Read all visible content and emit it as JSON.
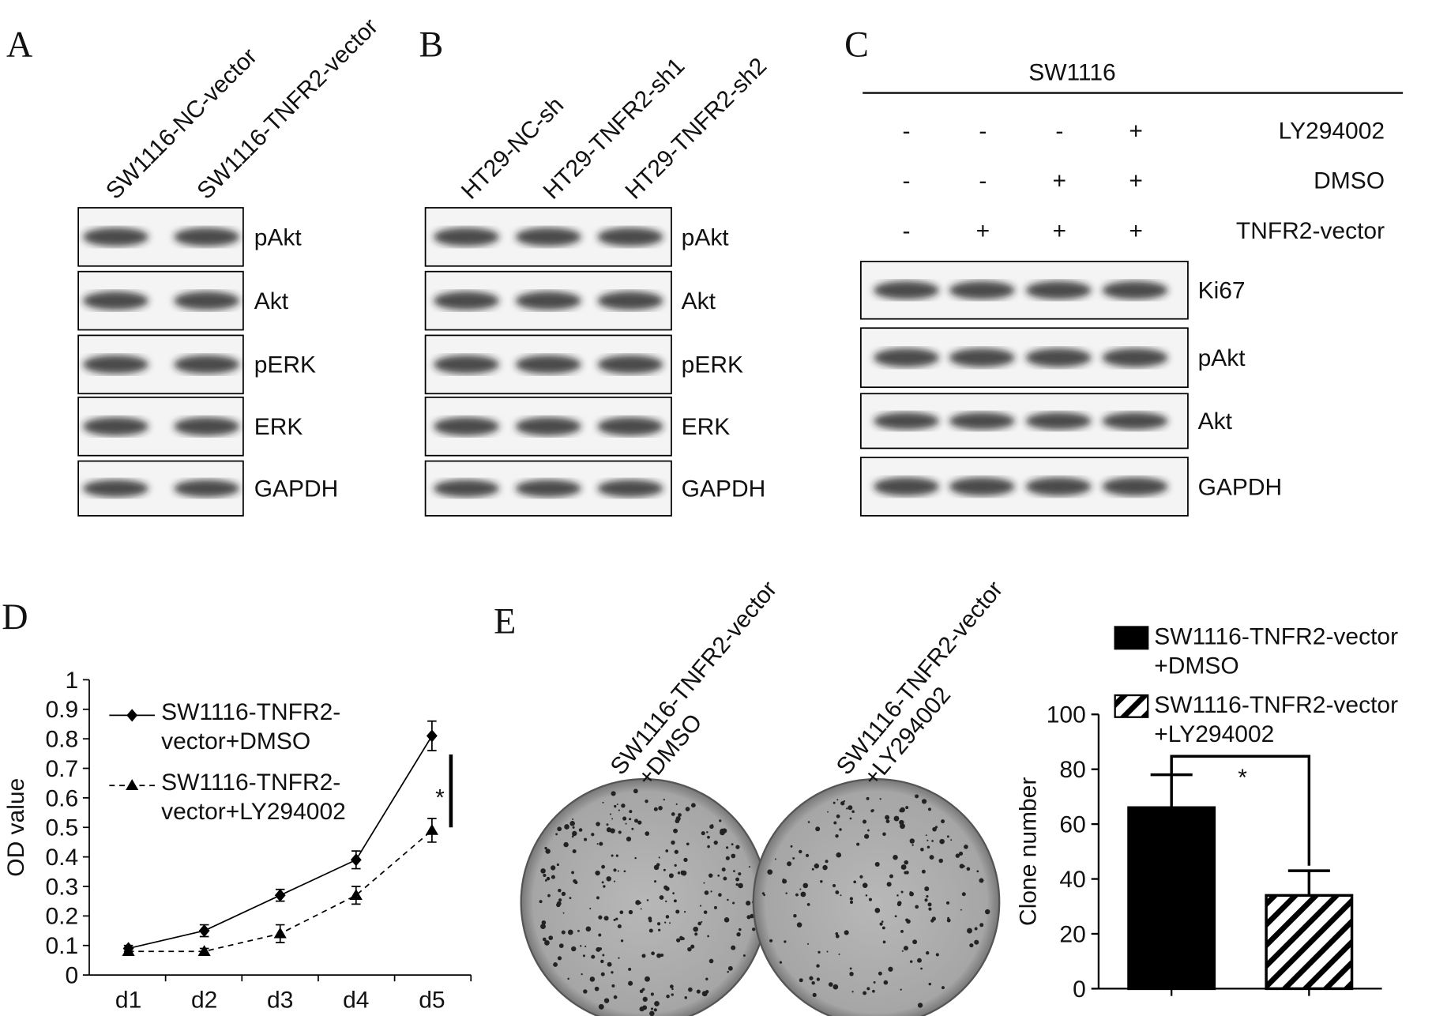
{
  "panels": {
    "a": {
      "label": "A",
      "lanes": [
        "SW1116-NC-vector",
        "SW1116-TNFR2-vector"
      ],
      "bands": [
        "pAkt",
        "Akt",
        "pERK",
        "ERK",
        "GAPDH"
      ]
    },
    "b": {
      "label": "B",
      "lanes": [
        "HT29-NC-sh",
        "HT29-TNFR2-sh1",
        "HT29-TNFR2-sh2"
      ],
      "bands": [
        "pAkt",
        "Akt",
        "pERK",
        "ERK",
        "GAPDH"
      ]
    },
    "c": {
      "label": "C",
      "cell_line": "SW1116",
      "treatments": [
        {
          "name": "LY294002",
          "signs": [
            "-",
            "-",
            "-",
            "+"
          ]
        },
        {
          "name": "DMSO",
          "signs": [
            "-",
            "-",
            "+",
            "+"
          ]
        },
        {
          "name": "TNFR2-vector",
          "signs": [
            "-",
            "+",
            "+",
            "+"
          ]
        }
      ],
      "bands": [
        "Ki67",
        "pAkt",
        "Akt",
        "GAPDH"
      ]
    },
    "d": {
      "label": "D"
    },
    "e": {
      "label": "E",
      "plates": [
        [
          "SW1116-TNFR2-vector",
          "+DMSO"
        ],
        [
          "SW1116-TNFR2-vector",
          "+LY294002"
        ]
      ]
    }
  },
  "chart_data": [
    {
      "type": "line",
      "ylabel": "OD value",
      "categories": [
        "d1",
        "d2",
        "d3",
        "d4",
        "d5"
      ],
      "ylim": [
        0,
        1
      ],
      "yticks": [
        0,
        0.1,
        0.2,
        0.3,
        0.4,
        0.5,
        0.6,
        0.7,
        0.8,
        0.9,
        1
      ],
      "series": [
        {
          "name": "SW1116-TNFR2-vector+DMSO",
          "color": "#000000",
          "marker": "diamond",
          "line_style": "solid",
          "values": [
            0.09,
            0.15,
            0.27,
            0.39,
            0.81
          ],
          "errors": [
            0.01,
            0.02,
            0.02,
            0.03,
            0.05
          ]
        },
        {
          "name": "SW1116-TNFR2-vector+LY294002",
          "color": "#000000",
          "marker": "triangle",
          "line_style": "dashed",
          "values": [
            0.08,
            0.08,
            0.14,
            0.27,
            0.49
          ],
          "errors": [
            0.01,
            0.01,
            0.03,
            0.03,
            0.04
          ]
        }
      ],
      "annotation": "*"
    },
    {
      "type": "bar",
      "ylabel": "Clone number",
      "ylim": [
        0,
        100
      ],
      "yticks": [
        0,
        20,
        40,
        60,
        80,
        100
      ],
      "series": [
        {
          "name": "SW1116-TNFR2-vector +DMSO",
          "color": "#000000",
          "pattern": "solid",
          "values": [
            66
          ],
          "errors": [
            12
          ]
        },
        {
          "name": "SW1116-TNFR2-vector +LY294002",
          "color": "#000000",
          "pattern": "hatch",
          "values": [
            34
          ],
          "errors": [
            9
          ]
        }
      ],
      "annotation": "*"
    }
  ]
}
